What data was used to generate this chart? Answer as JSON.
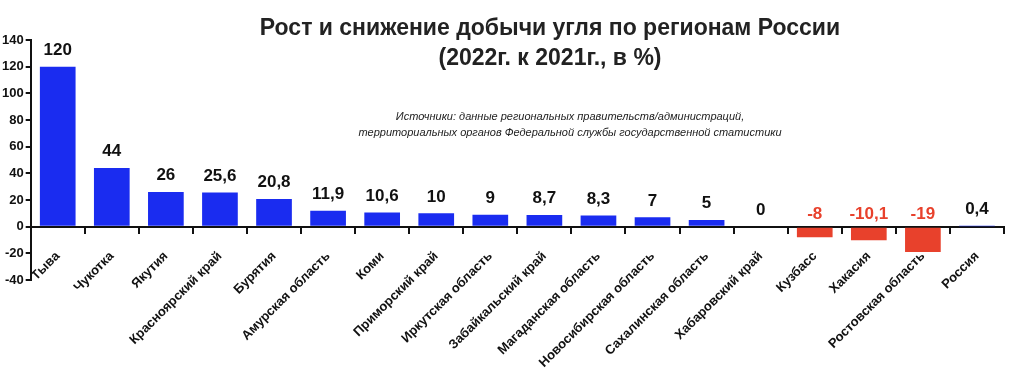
{
  "chart_data": {
    "type": "bar",
    "title": "Рост и снижение добычи угля по регионам России",
    "subtitle": "(2022г. к 2021г., в %)",
    "annotations": [
      "Источники:  данные региональных правительств/администраций,",
      "территориальных органов Федеральной службы государственной статистики"
    ],
    "categories": [
      "Тыва",
      "Чукотка",
      "Якутия",
      "Красноярский край",
      "Бурятия",
      "Амурская область",
      "Коми",
      "Приморский край",
      "Иркутская область",
      "Забайкальский край",
      "Магаданская область",
      "Новосибирская область",
      "Сахалинская область",
      "Хабаровский край",
      "Кузбасс",
      "Хакасия",
      "Ростовская область",
      "Россия"
    ],
    "values": [
      120,
      44,
      26,
      25.6,
      20.8,
      11.9,
      10.6,
      10,
      9,
      8.7,
      8.3,
      7,
      5,
      0,
      -8,
      -10.1,
      -19,
      0.4
    ],
    "colors": [
      "#1a2cf0",
      "#1a2cf0",
      "#1a2cf0",
      "#1a2cf0",
      "#1a2cf0",
      "#1a2cf0",
      "#1a2cf0",
      "#1a2cf0",
      "#1a2cf0",
      "#1a2cf0",
      "#1a2cf0",
      "#1a2cf0",
      "#1a2cf0",
      "#1a2cf0",
      "#e8412c",
      "#e8412c",
      "#e8412c",
      "#1a2cf0"
    ],
    "value_labels": [
      "120",
      "44",
      "26",
      "25,6",
      "20,8",
      "11,9",
      "10,6",
      "10",
      "9",
      "8,7",
      "8,3",
      "7",
      "5",
      "0",
      "-8",
      "-10,1",
      "-19",
      "0,4"
    ],
    "ylim": [
      -40,
      140
    ],
    "yticks": [
      -40,
      -20,
      0,
      20,
      40,
      60,
      80,
      100,
      120,
      140
    ]
  }
}
